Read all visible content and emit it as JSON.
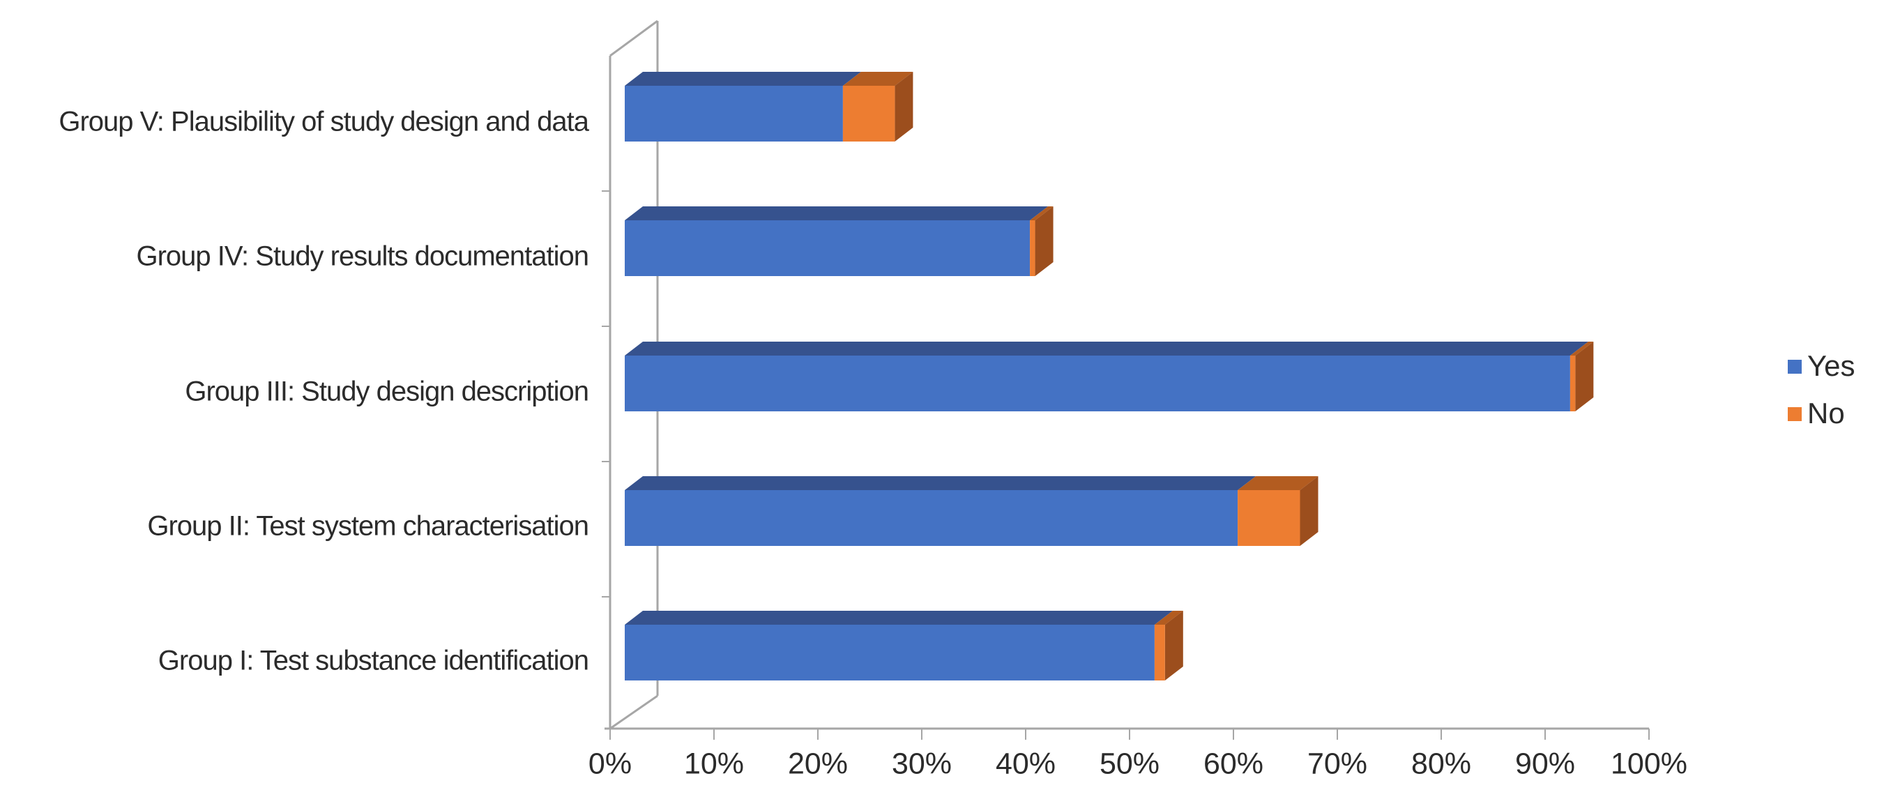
{
  "chart_data": {
    "type": "bar",
    "variant": "3d-horizontal-stacked-bar",
    "title": "",
    "xlabel": "",
    "ylabel": "",
    "categories": [
      "Group V: Plausibility of study design and data",
      "Group IV: Study results documentation",
      "Group III: Study design description",
      "Group II: Test system characterisation",
      "Group I: Test substance identification"
    ],
    "series": [
      {
        "name": "Yes",
        "color": "#4472C4",
        "values": [
          21,
          39,
          91,
          59,
          51
        ]
      },
      {
        "name": "No",
        "color": "#ED7D31",
        "values": [
          5,
          0.5,
          0.5,
          6,
          1
        ]
      }
    ],
    "x_axis": {
      "min": 0,
      "max": 100,
      "step": 10,
      "unit": "%",
      "tick_labels": [
        "0%",
        "10%",
        "20%",
        "30%",
        "40%",
        "50%",
        "60%",
        "70%",
        "80%",
        "90%",
        "100%"
      ]
    },
    "legend": {
      "position": "right",
      "items": [
        {
          "label": "Yes",
          "color": "#4472C4"
        },
        {
          "label": "No",
          "color": "#ED7D31"
        }
      ]
    },
    "grid": false
  },
  "colors": {
    "yes_front": "#4472C4",
    "yes_top": "#36528E",
    "no_front": "#ED7D31",
    "no_top": "#B35C20",
    "no_side": "#9C4E1D",
    "axis_line": "#A6A6A6",
    "text": "#2B2B2B"
  }
}
